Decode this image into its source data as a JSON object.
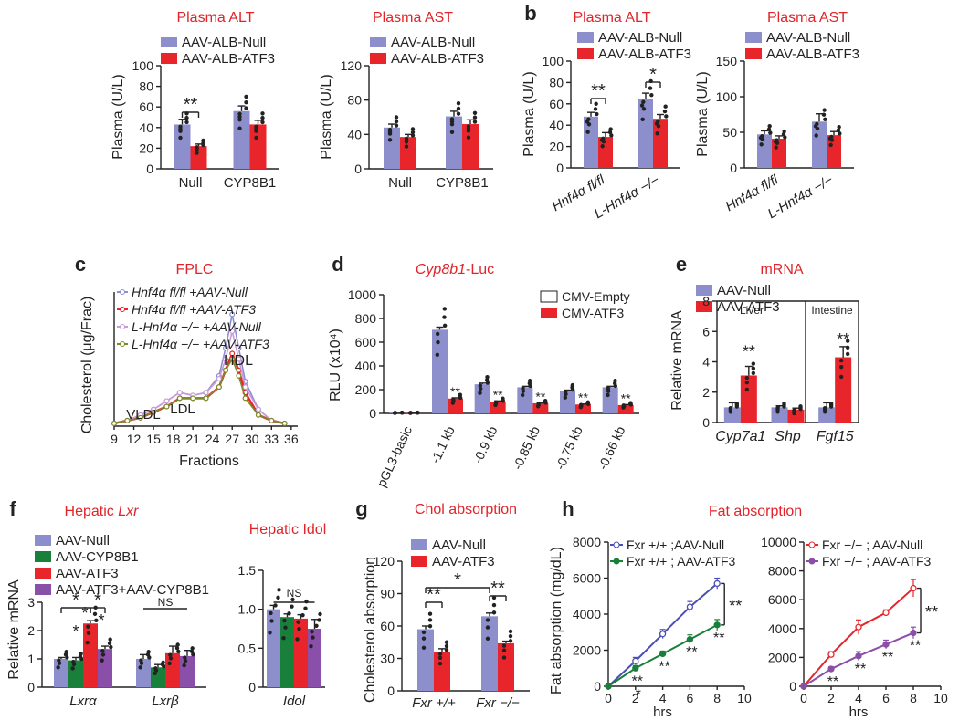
{
  "colors": {
    "blue": "#8c8fcc",
    "red": "#e8252b",
    "green": "#18803a",
    "purple": "#8a4fa8",
    "title_red": "#e0242a",
    "dark": "#222222",
    "white": "#ffffff"
  },
  "panel_letters": {
    "b": "b",
    "c": "c",
    "d": "d",
    "e": "e",
    "f": "f",
    "g": "g",
    "h": "h"
  },
  "chart_data": [
    {
      "id": "a1",
      "type": "bar",
      "title": "Plasma ALT",
      "ylabel": "Plasma (U/L)",
      "ylim": [
        0,
        100
      ],
      "ticks": [
        0,
        20,
        40,
        60,
        80,
        100
      ],
      "categories": [
        "Null",
        "CYP8B1"
      ],
      "legend": [
        "AAV-ALB-Null",
        "AAV-ALB-ATF3"
      ],
      "series": [
        {
          "name": "AAV-ALB-Null",
          "values": [
            43,
            56
          ],
          "errors": [
            5,
            5
          ]
        },
        {
          "name": "AAV-ALB-ATF3",
          "values": [
            22,
            43
          ],
          "errors": [
            2,
            4
          ]
        }
      ],
      "sig": [
        {
          "label": "**",
          "group": 0
        }
      ]
    },
    {
      "id": "a2",
      "type": "bar",
      "title": "Plasma AST",
      "ylabel": "Plasma (U/L)",
      "ylim": [
        0,
        120
      ],
      "ticks": [
        0,
        40,
        80,
        120
      ],
      "categories": [
        "Null",
        "CYP8B1"
      ],
      "legend": [
        "AAV-ALB-Null",
        "AAV-ALB-ATF3"
      ],
      "series": [
        {
          "name": "AAV-ALB-Null",
          "values": [
            48,
            61
          ],
          "errors": [
            4,
            6
          ]
        },
        {
          "name": "AAV-ALB-ATF3",
          "values": [
            37,
            52
          ],
          "errors": [
            3,
            5
          ]
        }
      ],
      "sig": []
    },
    {
      "id": "b1",
      "type": "bar",
      "title": "Plasma ALT",
      "ylabel": "Plasma (U/L)",
      "ylim": [
        0,
        100
      ],
      "ticks": [
        0,
        20,
        40,
        60,
        80,
        100
      ],
      "categories": [
        "Hnf4α fl/fl",
        "L-Hnf4α −/−"
      ],
      "legend": [
        "AAV-ALB-Null",
        "AAV-ALB-ATF3"
      ],
      "series": [
        {
          "name": "AAV-ALB-Null",
          "values": [
            48,
            65
          ],
          "errors": [
            4,
            5
          ]
        },
        {
          "name": "AAV-ALB-ATF3",
          "values": [
            29,
            46
          ],
          "errors": [
            4,
            4
          ]
        }
      ],
      "sig": [
        {
          "label": "**",
          "group": 0
        },
        {
          "label": "*",
          "group": 1
        }
      ]
    },
    {
      "id": "b2",
      "type": "bar",
      "title": "Plasma AST",
      "ylabel": "Plasma (U/L)",
      "ylim": [
        0,
        150
      ],
      "ticks": [
        0,
        50,
        100,
        150
      ],
      "categories": [
        "Hnf4α fl/fl",
        "L-Hnf4α −/−"
      ],
      "legend": [
        "AAV-ALB-Null",
        "AAV-ALB-ATF3"
      ],
      "series": [
        {
          "name": "AAV-ALB-Null",
          "values": [
            47,
            65
          ],
          "errors": [
            5,
            11
          ]
        },
        {
          "name": "AAV-ALB-ATF3",
          "values": [
            41,
            46
          ],
          "errors": [
            4,
            5
          ]
        }
      ],
      "sig": []
    },
    {
      "id": "c",
      "type": "line",
      "title": "FPLC",
      "ylabel": "Cholesterol (μg/Frac)",
      "xlabel": "Fractions",
      "ticks": [
        "9",
        "12",
        "15",
        "18",
        "21",
        "24",
        "27",
        "30",
        "33",
        "36"
      ],
      "legend": [
        "Hnf4α fl/fl +AAV-Null",
        "Hnf4α fl/fl +AAV-ATF3",
        "L-Hnf4α −/− +AAV-Null",
        "L-Hnf4α −/− +AAV-ATF3"
      ],
      "annotations": [
        "VLDL",
        "LDL",
        "HDL"
      ],
      "x": [
        9,
        11,
        13,
        15,
        17,
        19,
        21,
        23,
        25,
        26,
        27,
        28,
        29,
        31,
        33,
        35
      ],
      "series": [
        {
          "name": "Hnf4α fl/fl +AAV-Null",
          "values": [
            0.5,
            1,
            2,
            3,
            4.5,
            6,
            5.5,
            6,
            9,
            14,
            20,
            14,
            8,
            3,
            1,
            0.5
          ]
        },
        {
          "name": "Hnf4α fl/fl +AAV-ATF3",
          "values": [
            0.5,
            1,
            1.5,
            2.5,
            3.5,
            5,
            5,
            5,
            7,
            10,
            13,
            10,
            6,
            2,
            1,
            0.5
          ]
        },
        {
          "name": "L-Hnf4α −/− +AAV-Null",
          "values": [
            0.5,
            1,
            2,
            3,
            4.5,
            6,
            5.5,
            6,
            8.5,
            12,
            17,
            12,
            7,
            3,
            1,
            0.5
          ]
        },
        {
          "name": "L-Hnf4α −/− +AAV-ATF3",
          "values": [
            0.5,
            1,
            1.5,
            2.5,
            3.5,
            5,
            5,
            5,
            7,
            10,
            12,
            9,
            5,
            2,
            1,
            0.5
          ]
        }
      ]
    },
    {
      "id": "d",
      "type": "bar",
      "title_italic": "Cyp8b1",
      "title_rest": "-Luc",
      "ylabel": "RLU (x10⁴)",
      "ylim": [
        0,
        1000
      ],
      "ticks": [
        0,
        200,
        400,
        600,
        800,
        1000
      ],
      "categories": [
        "pGL3-basic",
        "-1.1 kb",
        "-0.9 kb",
        "-0.85 kb",
        "-0.75 kb",
        "-0.66 kb"
      ],
      "legend": [
        "CMV-Empty",
        "CMV-ATF3"
      ],
      "series": [
        {
          "name": "CMV-Empty",
          "values": [
            5,
            705,
            245,
            220,
            190,
            220
          ],
          "errors": [
            2,
            22,
            10,
            8,
            6,
            8
          ]
        },
        {
          "name": "CMV-ATF3",
          "values": [
            5,
            125,
            100,
            85,
            75,
            70
          ],
          "errors": [
            1,
            6,
            5,
            4,
            4,
            4
          ]
        }
      ],
      "sig_label": "**"
    },
    {
      "id": "e",
      "type": "bar",
      "title": "mRNA",
      "ylabel": "Relative mRNA",
      "ylim": [
        0,
        8
      ],
      "ticks": [
        0,
        2,
        4,
        6,
        8
      ],
      "categories": [
        "Cyp7a1",
        "Shp",
        "Fgf15"
      ],
      "legend": [
        "AAV-Null",
        "AAV-ATF3"
      ],
      "region_labels": [
        "Liver",
        "Intestine"
      ],
      "series": [
        {
          "name": "AAV-Null",
          "values": [
            1.0,
            1.0,
            1.0
          ],
          "errors": [
            0.3,
            0.1,
            0.3
          ]
        },
        {
          "name": "AAV-ATF3",
          "values": [
            3.1,
            0.85,
            4.3
          ],
          "errors": [
            0.6,
            0.1,
            0.7
          ]
        }
      ],
      "sig": [
        {
          "label": "**",
          "group": 0
        },
        {
          "label": "**",
          "group": 2
        }
      ]
    },
    {
      "id": "f1",
      "type": "bar",
      "title_plain": "Hepatic ",
      "title_italic": "Lxr",
      "ylabel": "Relative mRNA",
      "ylim": [
        0,
        3
      ],
      "ticks": [
        0,
        1,
        2,
        3
      ],
      "categories": [
        "Lxrα",
        "Lxrβ"
      ],
      "legend": [
        "AAV-Null",
        "AAV-CYP8B1",
        "AAV-ATF3",
        "AAV-ATF3+AAV-CYP8B1"
      ],
      "series": [
        {
          "name": "AAV-Null",
          "values": [
            1.0,
            1.0
          ],
          "errors": [
            0.05,
            0.15
          ]
        },
        {
          "name": "AAV-CYP8B1",
          "values": [
            0.95,
            0.7
          ],
          "errors": [
            0.1,
            0.1
          ]
        },
        {
          "name": "AAV-ATF3",
          "values": [
            2.25,
            1.2
          ],
          "errors": [
            0.1,
            0.25
          ]
        },
        {
          "name": "AAV-ATF3+AAV-CYP8B1",
          "values": [
            1.35,
            1.1
          ],
          "errors": [
            0.1,
            0.2
          ]
        }
      ],
      "sig_labels": [
        "*",
        "*",
        "NS"
      ]
    },
    {
      "id": "f2",
      "type": "bar",
      "title": "Hepatic Idol",
      "ylim": [
        0,
        1.5
      ],
      "ticks": [
        "0",
        "0.5",
        "1.0",
        "1.5"
      ],
      "categories": [
        "Idol"
      ],
      "series": [
        {
          "name": "AAV-Null",
          "values": [
            1.0
          ],
          "errors": [
            0.05
          ]
        },
        {
          "name": "AAV-CYP8B1",
          "values": [
            0.9
          ],
          "errors": [
            0.04
          ]
        },
        {
          "name": "AAV-ATF3",
          "values": [
            0.88
          ],
          "errors": [
            0.05
          ]
        },
        {
          "name": "AAV-ATF3+AAV-CYP8B1",
          "values": [
            0.75
          ],
          "errors": [
            0.12
          ]
        }
      ],
      "sig_labels": [
        "NS"
      ]
    },
    {
      "id": "g",
      "type": "bar",
      "title": "Chol absorption",
      "ylabel": "Cholesterol absorption",
      "ylim": [
        0,
        120
      ],
      "ticks": [
        0,
        30,
        60,
        90,
        120
      ],
      "categories": [
        "Fxr +/+",
        "Fxr −/−"
      ],
      "legend": [
        "AAV-Null",
        "AAV-ATF3"
      ],
      "series": [
        {
          "name": "AAV-Null",
          "values": [
            57,
            69
          ],
          "errors": [
            3,
            3
          ]
        },
        {
          "name": "AAV-ATF3",
          "values": [
            36,
            44
          ],
          "errors": [
            3,
            2
          ]
        }
      ],
      "sig_labels": [
        "**",
        "**",
        "*"
      ]
    },
    {
      "id": "h1",
      "type": "line",
      "title": "Fat absorption",
      "ylabel": "Fat absorption (mg/dL)",
      "xlabel": "hrs",
      "ylim": [
        0,
        8000
      ],
      "xlim": [
        0,
        10
      ],
      "ticks": [
        0,
        2000,
        4000,
        6000,
        8000
      ],
      "xticks": [
        0,
        2,
        4,
        6,
        8,
        10
      ],
      "legend": [
        "Fxr +/+ ;AAV-Null",
        "Fxr +/+ ; AAV-ATF3"
      ],
      "x": [
        0,
        2,
        4,
        6,
        8
      ],
      "series": [
        {
          "name": "Fxr +/+ ;AAV-Null",
          "values": [
            0,
            1400,
            2900,
            4400,
            5700
          ],
          "errors": [
            0,
            200,
            250,
            300,
            300
          ]
        },
        {
          "name": "Fxr +/+ ; AAV-ATF3",
          "values": [
            0,
            1000,
            1800,
            2600,
            3400
          ],
          "errors": [
            0,
            150,
            150,
            250,
            300
          ]
        }
      ],
      "sig_label": "**",
      "sig_star": "*"
    },
    {
      "id": "h2",
      "type": "line",
      "ylim": [
        0,
        10000
      ],
      "xlim": [
        0,
        10
      ],
      "ticks": [
        0,
        2000,
        4000,
        6000,
        8000,
        10000
      ],
      "xticks": [
        0,
        2,
        4,
        6,
        8,
        10
      ],
      "xlabel": "hrs",
      "legend": [
        "Fxr −/− ; AAV-Null",
        "Fxr −/− ; AAV-ATF3"
      ],
      "x": [
        0,
        2,
        4,
        6,
        8
      ],
      "series": [
        {
          "name": "Fxr −/− ; AAV-Null",
          "values": [
            0,
            2200,
            4100,
            5100,
            6800
          ],
          "errors": [
            0,
            200,
            500,
            200,
            600
          ]
        },
        {
          "name": "Fxr −/− ; AAV-ATF3",
          "values": [
            0,
            1200,
            2100,
            2900,
            3700
          ],
          "errors": [
            0,
            150,
            300,
            300,
            400
          ]
        }
      ],
      "sig_label": "**"
    }
  ]
}
